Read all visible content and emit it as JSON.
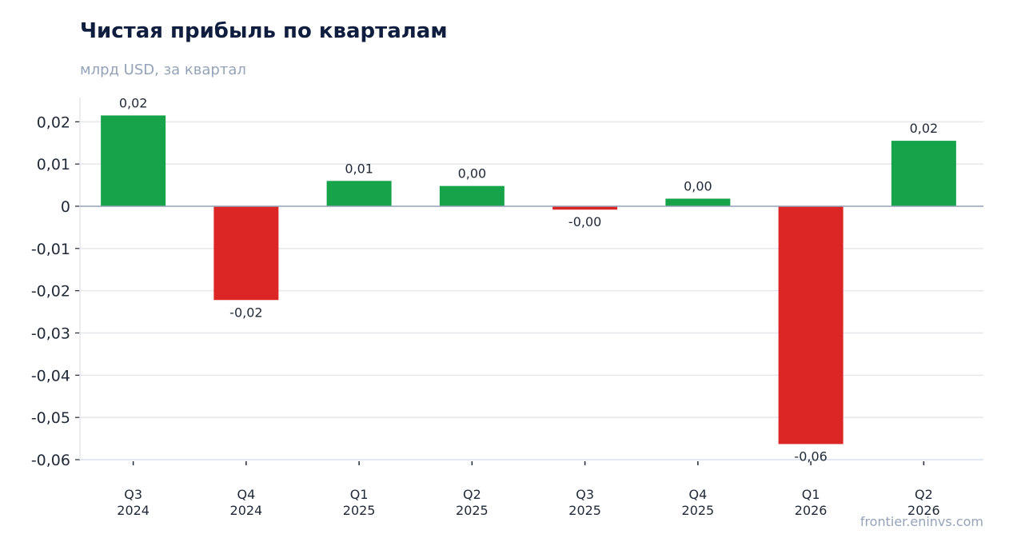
{
  "header": {
    "title": "Чистая прибыль по кварталам",
    "subtitle": "млрд USD, за квартал"
  },
  "footer": {
    "watermark": "frontier.eninvs.com"
  },
  "colors": {
    "positive": "#16a34a",
    "negative": "#dc2626",
    "grid": "#e5e7eb",
    "zero_line": "#94a3b8"
  },
  "chart_data": {
    "type": "bar",
    "title": "Чистая прибыль по кварталам",
    "subtitle": "млрд USD, за квартал",
    "categories": [
      [
        "Q3",
        "2024"
      ],
      [
        "Q4",
        "2024"
      ],
      [
        "Q1",
        "2025"
      ],
      [
        "Q2",
        "2025"
      ],
      [
        "Q3",
        "2025"
      ],
      [
        "Q4",
        "2025"
      ],
      [
        "Q1",
        "2026"
      ],
      [
        "Q2",
        "2026"
      ]
    ],
    "values": [
      0.0215,
      -0.0222,
      0.006,
      0.0048,
      -0.0008,
      0.0018,
      -0.0563,
      0.0155
    ],
    "data_labels": [
      "0,02",
      "-0,02",
      "0,01",
      "0,00",
      "-0,00",
      "0,00",
      "-0,06",
      "0,02"
    ],
    "y_ticks": [
      0.02,
      0.01,
      0,
      -0.01,
      -0.02,
      -0.03,
      -0.04,
      -0.05,
      -0.06
    ],
    "y_tick_labels": [
      "0,02",
      "0,01",
      "0",
      "-0,01",
      "-0,02",
      "-0,03",
      "-0,04",
      "-0,05",
      "-0,06"
    ],
    "ylim": [
      -0.06,
      0.0255
    ],
    "grid": true,
    "legend": "none"
  }
}
